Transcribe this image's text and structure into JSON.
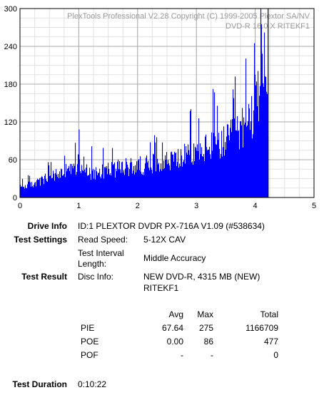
{
  "chart_data": {
    "type": "bar",
    "x_range": [
      0,
      5
    ],
    "y_range": [
      0,
      300
    ],
    "x_ticks": [
      "0",
      "1",
      "2",
      "3",
      "4",
      "5"
    ],
    "y_ticks": [
      "0",
      "60",
      "120",
      "180",
      "240",
      "300"
    ],
    "grid": true,
    "watermark_line1": "PlexTools Professional V2.28 Copyright (C) 1999-2005 Plextor SA/NV",
    "watermark_line2": "DVD-R   16.0 X   RITEKF1",
    "bar_color": "#0000ff",
    "end_marker_x": 4.22,
    "envelope": [
      [
        0.0,
        20
      ],
      [
        0.3,
        30
      ],
      [
        0.6,
        45
      ],
      [
        0.9,
        55
      ],
      [
        1.0,
        70
      ],
      [
        1.2,
        50
      ],
      [
        1.5,
        55
      ],
      [
        1.8,
        60
      ],
      [
        2.0,
        62
      ],
      [
        2.3,
        70
      ],
      [
        2.6,
        75
      ],
      [
        2.9,
        85
      ],
      [
        3.2,
        100
      ],
      [
        3.5,
        110
      ],
      [
        3.7,
        130
      ],
      [
        3.85,
        150
      ],
      [
        3.95,
        170
      ],
      [
        4.05,
        210
      ],
      [
        4.12,
        240
      ],
      [
        4.2,
        170
      ]
    ],
    "spikes": [
      [
        1.0,
        108
      ],
      [
        4.1,
        275
      ],
      [
        4.15,
        262
      ],
      [
        3.98,
        210
      ]
    ]
  },
  "drive_info": {
    "label": "Drive Info",
    "value": "ID:1 PLEXTOR DVDR PX-716A V1.09 (#538634)"
  },
  "test_settings": {
    "label": "Test Settings",
    "read_speed_label": "Read Speed:",
    "read_speed_value": "5-12X CAV",
    "interval_label_line1": "Test Interval",
    "interval_label_line2": "Length:",
    "interval_value": "Middle Accuracy"
  },
  "test_result": {
    "label": "Test Result",
    "disc_info_label": "Disc Info:",
    "disc_info_line1": "NEW DVD-R, 4315 MB (NEW)",
    "disc_info_line2": "RITEKF1"
  },
  "table": {
    "headers": [
      "Avg",
      "Max",
      "Total"
    ],
    "rows": [
      {
        "name": "PIE",
        "avg": "67.64",
        "max": "275",
        "total": "1166709"
      },
      {
        "name": "POE",
        "avg": "0.00",
        "max": "86",
        "total": "477"
      },
      {
        "name": "POF",
        "avg": "-",
        "max": "-",
        "total": "0"
      }
    ]
  },
  "test_duration": {
    "label": "Test Duration",
    "value": "0:10:22"
  }
}
